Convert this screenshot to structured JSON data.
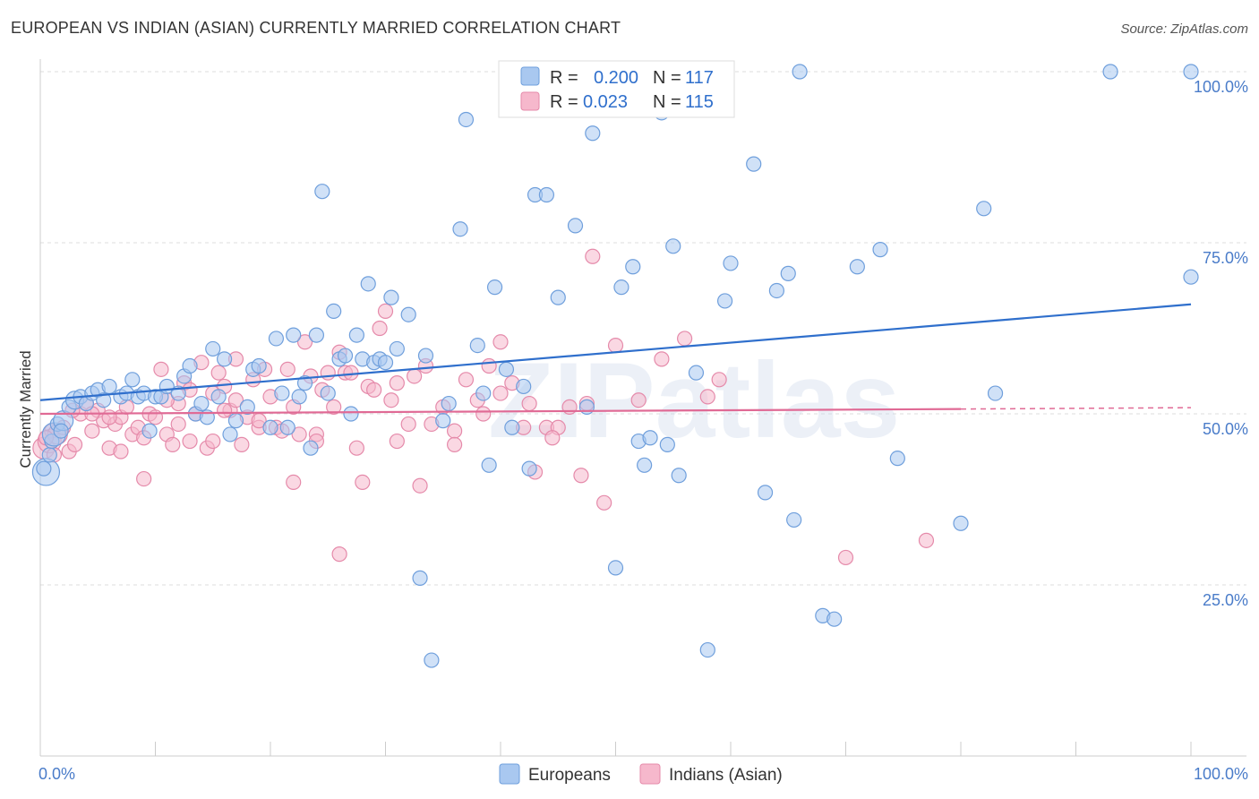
{
  "title": "EUROPEAN VS INDIAN (ASIAN) CURRENTLY MARRIED CORRELATION CHART",
  "source": "Source: ZipAtlas.com",
  "watermark": "ZIPatlas",
  "colors": {
    "european_fill": "#a9c8f0",
    "european_stroke": "#6f9fdc",
    "european_line": "#2f6fcc",
    "indian_fill": "#f6b8cc",
    "indian_stroke": "#e58aaa",
    "indian_line": "#e06a95",
    "tick_text": "#4a7cc9",
    "grid": "#dddddd"
  },
  "legend": {
    "r_label": "R =",
    "n_label": "N =",
    "european": {
      "r": "0.200",
      "n": "117"
    },
    "indian": {
      "r": "0.023",
      "n": "115"
    }
  },
  "chart_data": {
    "type": "scatter",
    "title": "EUROPEAN VS INDIAN (ASIAN) CURRENTLY MARRIED CORRELATION CHART",
    "xlabel": "",
    "ylabel": "Currently Married",
    "xlim": [
      0,
      100
    ],
    "ylim": [
      0,
      105
    ],
    "x_tick_labels": [
      "0.0%",
      "100.0%"
    ],
    "y_ticks": [
      25,
      50,
      75,
      100
    ],
    "y_tick_labels": [
      "25.0%",
      "50.0%",
      "75.0%",
      "100.0%"
    ],
    "legend_position": "top-center",
    "bottom_legend": [
      "Europeans",
      "Indians (Asian)"
    ],
    "series": [
      {
        "name": "Europeans",
        "trend": {
          "x0": 0,
          "y0": 52.0,
          "x1": 100,
          "y1": 66.0
        },
        "points": [
          [
            0.5,
            41.5
          ],
          [
            0.8,
            44.0
          ],
          [
            1.0,
            46.0
          ],
          [
            1.2,
            47.0
          ],
          [
            1.5,
            48.5
          ],
          [
            2.0,
            49.0
          ],
          [
            2.5,
            51.0
          ],
          [
            3.0,
            52.0
          ],
          [
            3.5,
            52.5
          ],
          [
            4.0,
            51.5
          ],
          [
            4.5,
            53.0
          ],
          [
            5.0,
            53.5
          ],
          [
            5.5,
            52.0
          ],
          [
            6.0,
            54.0
          ],
          [
            7.0,
            52.5
          ],
          [
            7.5,
            53.0
          ],
          [
            8.0,
            55.0
          ],
          [
            8.5,
            52.5
          ],
          [
            9.0,
            53.0
          ],
          [
            9.5,
            47.5
          ],
          [
            10.0,
            52.5
          ],
          [
            10.5,
            52.5
          ],
          [
            11.0,
            54.0
          ],
          [
            12.0,
            53.0
          ],
          [
            12.5,
            55.5
          ],
          [
            13.0,
            57.0
          ],
          [
            13.5,
            50.0
          ],
          [
            14.0,
            51.5
          ],
          [
            14.5,
            49.5
          ],
          [
            15.0,
            59.5
          ],
          [
            15.5,
            52.5
          ],
          [
            16.0,
            58.0
          ],
          [
            16.5,
            47.0
          ],
          [
            17.0,
            49.0
          ],
          [
            18.0,
            51.0
          ],
          [
            18.5,
            56.5
          ],
          [
            19.0,
            57.0
          ],
          [
            20.0,
            48.0
          ],
          [
            20.5,
            61.0
          ],
          [
            21.0,
            53.0
          ],
          [
            21.5,
            48.0
          ],
          [
            22.0,
            61.5
          ],
          [
            22.5,
            52.5
          ],
          [
            23.0,
            54.5
          ],
          [
            23.5,
            45.0
          ],
          [
            24.0,
            61.5
          ],
          [
            24.5,
            82.5
          ],
          [
            25.0,
            53.0
          ],
          [
            25.5,
            65.0
          ],
          [
            26.0,
            58.0
          ],
          [
            26.5,
            58.5
          ],
          [
            27.0,
            50.0
          ],
          [
            27.5,
            61.5
          ],
          [
            28.0,
            58.0
          ],
          [
            28.5,
            69.0
          ],
          [
            29.0,
            57.5
          ],
          [
            29.5,
            58.0
          ],
          [
            30.0,
            57.5
          ],
          [
            30.5,
            67.0
          ],
          [
            31.0,
            59.5
          ],
          [
            32.0,
            64.5
          ],
          [
            33.0,
            26.0
          ],
          [
            33.5,
            58.5
          ],
          [
            34.0,
            14.0
          ],
          [
            35.0,
            49.0
          ],
          [
            35.5,
            51.5
          ],
          [
            36.5,
            77.0
          ],
          [
            37.0,
            93.0
          ],
          [
            38.0,
            60.0
          ],
          [
            38.5,
            53.0
          ],
          [
            39.0,
            42.5
          ],
          [
            39.5,
            68.5
          ],
          [
            40.5,
            56.5
          ],
          [
            41.0,
            48.0
          ],
          [
            42.0,
            54.0
          ],
          [
            42.5,
            42.0
          ],
          [
            43.0,
            82.0
          ],
          [
            44.0,
            82.0
          ],
          [
            45.0,
            67.0
          ],
          [
            46.0,
            100.0
          ],
          [
            46.5,
            77.5
          ],
          [
            47.5,
            51.0
          ],
          [
            48.0,
            91.0
          ],
          [
            50.0,
            27.5
          ],
          [
            50.5,
            68.5
          ],
          [
            51.0,
            100.0
          ],
          [
            51.5,
            71.5
          ],
          [
            52.0,
            46.0
          ],
          [
            52.5,
            42.5
          ],
          [
            53.0,
            46.5
          ],
          [
            54.0,
            94.0
          ],
          [
            54.5,
            45.5
          ],
          [
            55.0,
            74.5
          ],
          [
            55.5,
            41.0
          ],
          [
            57.0,
            56.0
          ],
          [
            58.0,
            15.5
          ],
          [
            59.5,
            66.5
          ],
          [
            60.0,
            72.0
          ],
          [
            62.0,
            86.5
          ],
          [
            63.0,
            38.5
          ],
          [
            64.0,
            68.0
          ],
          [
            65.0,
            70.5
          ],
          [
            65.5,
            34.5
          ],
          [
            66.0,
            100.0
          ],
          [
            68.0,
            20.5
          ],
          [
            69.0,
            20.0
          ],
          [
            71.0,
            71.5
          ],
          [
            73.0,
            74.0
          ],
          [
            74.5,
            43.5
          ],
          [
            80.0,
            34.0
          ],
          [
            82.0,
            80.0
          ],
          [
            83.0,
            53.0
          ],
          [
            93.0,
            100.0
          ],
          [
            100.0,
            70.0
          ],
          [
            102.0,
            100.0
          ],
          [
            0.3,
            42.0
          ],
          [
            1.8,
            47.5
          ]
        ],
        "sizes": {
          "default": 8,
          "large": [
            [
              0.5,
              41.5,
              15
            ],
            [
              1.2,
              47.0,
              13
            ],
            [
              2.0,
              49.0,
              11
            ],
            [
              3.0,
              52.0,
              10
            ]
          ]
        }
      },
      {
        "name": "Indians (Asian)",
        "trend": {
          "x0": 0,
          "y0": 50.0,
          "x1": 80,
          "y1": 50.7,
          "dashed_to": [
            100,
            50.9
          ]
        },
        "points": [
          [
            0.3,
            45.0
          ],
          [
            0.8,
            46.0
          ],
          [
            1.0,
            47.5
          ],
          [
            1.5,
            47.0
          ],
          [
            2.0,
            48.0
          ],
          [
            2.5,
            44.5
          ],
          [
            3.0,
            45.5
          ],
          [
            3.5,
            50.0
          ],
          [
            4.0,
            51.5
          ],
          [
            4.5,
            47.5
          ],
          [
            5.0,
            50.5
          ],
          [
            5.5,
            49.0
          ],
          [
            6.0,
            45.0
          ],
          [
            6.5,
            48.5
          ],
          [
            7.0,
            49.5
          ],
          [
            7.5,
            51.0
          ],
          [
            8.0,
            47.0
          ],
          [
            8.5,
            48.0
          ],
          [
            9.0,
            46.5
          ],
          [
            9.5,
            50.0
          ],
          [
            10.0,
            49.5
          ],
          [
            10.5,
            56.5
          ],
          [
            11.0,
            47.0
          ],
          [
            11.5,
            45.5
          ],
          [
            12.0,
            51.5
          ],
          [
            12.5,
            54.5
          ],
          [
            13.0,
            53.5
          ],
          [
            13.5,
            50.0
          ],
          [
            14.0,
            57.5
          ],
          [
            14.5,
            45.0
          ],
          [
            15.0,
            46.0
          ],
          [
            15.5,
            56.0
          ],
          [
            16.0,
            54.0
          ],
          [
            16.5,
            50.5
          ],
          [
            17.0,
            52.0
          ],
          [
            17.5,
            45.5
          ],
          [
            18.0,
            49.5
          ],
          [
            18.5,
            55.0
          ],
          [
            19.0,
            48.0
          ],
          [
            19.5,
            56.5
          ],
          [
            20.0,
            52.5
          ],
          [
            20.5,
            48.0
          ],
          [
            21.0,
            47.5
          ],
          [
            21.5,
            56.5
          ],
          [
            22.0,
            51.0
          ],
          [
            22.5,
            47.0
          ],
          [
            23.0,
            60.5
          ],
          [
            23.5,
            55.5
          ],
          [
            24.0,
            47.0
          ],
          [
            24.5,
            53.5
          ],
          [
            25.0,
            56.0
          ],
          [
            25.5,
            51.0
          ],
          [
            26.0,
            59.0
          ],
          [
            26.5,
            56.0
          ],
          [
            27.0,
            56.0
          ],
          [
            27.5,
            45.0
          ],
          [
            28.0,
            40.0
          ],
          [
            28.5,
            54.0
          ],
          [
            29.0,
            53.5
          ],
          [
            29.5,
            62.5
          ],
          [
            30.0,
            65.0
          ],
          [
            30.5,
            52.0
          ],
          [
            31.0,
            54.5
          ],
          [
            32.0,
            48.5
          ],
          [
            32.5,
            55.5
          ],
          [
            33.0,
            39.5
          ],
          [
            34.0,
            48.5
          ],
          [
            35.0,
            51.0
          ],
          [
            36.0,
            47.5
          ],
          [
            37.0,
            55.0
          ],
          [
            38.0,
            52.0
          ],
          [
            38.5,
            50.0
          ],
          [
            39.0,
            57.0
          ],
          [
            40.0,
            60.5
          ],
          [
            41.0,
            54.5
          ],
          [
            42.0,
            48.0
          ],
          [
            42.5,
            51.5
          ],
          [
            43.0,
            41.5
          ],
          [
            44.0,
            48.0
          ],
          [
            45.0,
            48.0
          ],
          [
            46.0,
            51.0
          ],
          [
            47.0,
            41.0
          ],
          [
            47.5,
            51.5
          ],
          [
            48.0,
            73.0
          ],
          [
            49.0,
            37.0
          ],
          [
            50.0,
            60.0
          ],
          [
            52.0,
            52.0
          ],
          [
            54.0,
            58.0
          ],
          [
            56.0,
            61.0
          ],
          [
            58.0,
            52.5
          ],
          [
            59.0,
            55.0
          ],
          [
            70.0,
            29.0
          ],
          [
            77.0,
            31.5
          ],
          [
            9.0,
            40.5
          ],
          [
            13.0,
            46.0
          ],
          [
            22.0,
            40.0
          ],
          [
            26.0,
            29.5
          ],
          [
            16.0,
            50.5
          ],
          [
            6.0,
            49.5
          ],
          [
            11.0,
            52.0
          ],
          [
            15.0,
            53.0
          ],
          [
            17.0,
            58.0
          ],
          [
            24.0,
            46.0
          ],
          [
            31.0,
            46.0
          ],
          [
            33.5,
            57.0
          ],
          [
            36.0,
            45.5
          ],
          [
            40.0,
            53.0
          ],
          [
            44.5,
            46.5
          ],
          [
            0.5,
            46.5
          ],
          [
            1.2,
            44.0
          ],
          [
            2.8,
            50.5
          ],
          [
            4.5,
            50.0
          ],
          [
            7.0,
            44.5
          ],
          [
            12.0,
            48.5
          ],
          [
            19.0,
            49.0
          ]
        ],
        "sizes": {
          "default": 8,
          "large": [
            [
              0.8,
              46.0,
              13
            ],
            [
              1.5,
              47.0,
              11
            ],
            [
              0.3,
              45.0,
              12
            ]
          ]
        }
      }
    ]
  }
}
